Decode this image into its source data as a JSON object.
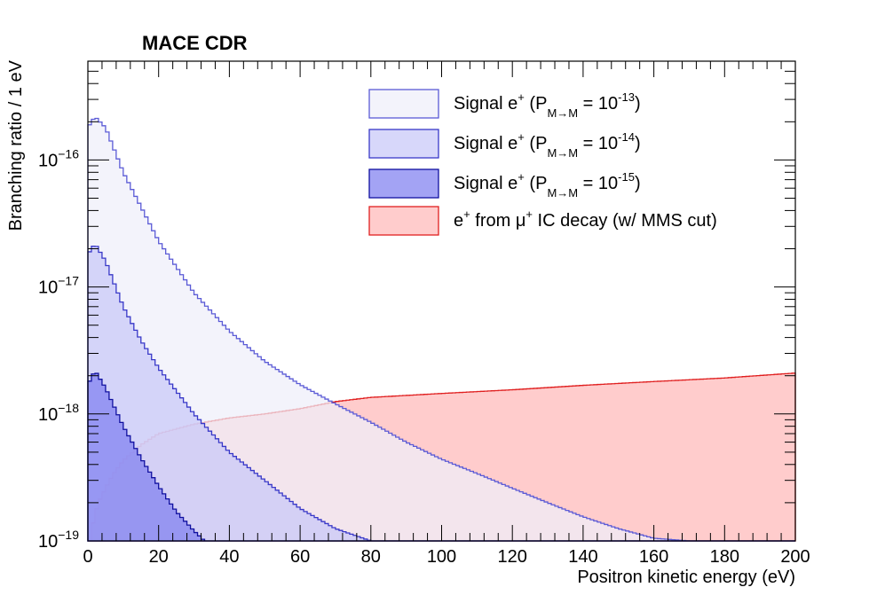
{
  "chart_data": {
    "type": "histogram",
    "title": "MACE CDR",
    "xlabel": "Positron kinetic energy (eV)",
    "ylabel": "Branching ratio / 1 eV",
    "xlim": [
      0,
      200
    ],
    "ylim": [
      1e-19,
      6e-16
    ],
    "yscale": "log",
    "bin_width_eV": 1,
    "x_ticks": [
      "0",
      "20",
      "40",
      "60",
      "80",
      "100",
      "120",
      "140",
      "160",
      "180",
      "200"
    ],
    "y_tick_mantissa": "10",
    "y_tick_exponents": [
      "−16",
      "−17",
      "−18",
      "−19"
    ],
    "legend_position": "top-right",
    "series": [
      {
        "name": "signal_1e-13",
        "legend_prefix": "Signal e",
        "legend_sup": "+",
        "legend_mid": " (P",
        "legend_sub": "M→M",
        "legend_eq": " = 10",
        "legend_exp": "-13",
        "legend_end": ")",
        "peak_x": 2,
        "peak_y": 2.2e-16,
        "points": [
          [
            0,
            1.8e-16
          ],
          [
            2,
            2.2e-16
          ],
          [
            5,
            1.8e-16
          ],
          [
            10,
            8e-17
          ],
          [
            20,
            2.3e-17
          ],
          [
            30,
            9e-18
          ],
          [
            40,
            4.5e-18
          ],
          [
            50,
            2.6e-18
          ],
          [
            60,
            1.7e-18
          ],
          [
            70,
            1.2e-18
          ],
          [
            80,
            8.6e-19
          ],
          [
            90,
            6e-19
          ],
          [
            100,
            4.4e-19
          ],
          [
            110,
            3.4e-19
          ],
          [
            120,
            2.6e-19
          ],
          [
            130,
            2e-19
          ],
          [
            140,
            1.55e-19
          ],
          [
            150,
            1.25e-19
          ],
          [
            160,
            1.05e-19
          ],
          [
            170,
            1e-19
          ]
        ],
        "fill": "#eeeefa",
        "line": "#5b5bd6"
      },
      {
        "name": "signal_1e-14",
        "legend_prefix": "Signal e",
        "legend_sup": "+",
        "legend_mid": " (P",
        "legend_sub": "M→M",
        "legend_eq": " = 10",
        "legend_exp": "-14",
        "legend_end": ")",
        "peak_x": 2,
        "peak_y": 2.2e-17,
        "points": [
          [
            0,
            1.8e-17
          ],
          [
            2,
            2.2e-17
          ],
          [
            5,
            1.6e-17
          ],
          [
            10,
            7e-18
          ],
          [
            15,
            3.8e-18
          ],
          [
            20,
            2.3e-18
          ],
          [
            30,
            1e-18
          ],
          [
            40,
            5e-19
          ],
          [
            50,
            3e-19
          ],
          [
            60,
            1.8e-19
          ],
          [
            70,
            1.25e-19
          ],
          [
            80,
            1e-19
          ]
        ],
        "fill": "#c8c8f8",
        "line": "#3838c8"
      },
      {
        "name": "signal_1e-15",
        "legend_prefix": "Signal e",
        "legend_sup": "+",
        "legend_mid": " (P",
        "legend_sub": "M→M",
        "legend_eq": " = 10",
        "legend_exp": "-15",
        "legend_end": ")",
        "peak_x": 2,
        "peak_y": 2.2e-18,
        "points": [
          [
            0,
            1.7e-18
          ],
          [
            2,
            2.2e-18
          ],
          [
            5,
            1.6e-18
          ],
          [
            10,
            8e-19
          ],
          [
            15,
            4.5e-19
          ],
          [
            20,
            2.7e-19
          ],
          [
            25,
            1.7e-19
          ],
          [
            30,
            1.2e-19
          ],
          [
            33,
            1e-19
          ]
        ],
        "fill": "#8080f0",
        "line": "#1010a0"
      },
      {
        "name": "ic_decay",
        "legend_prefix": "e",
        "legend_sup": "+",
        "legend_mid": " from   μ",
        "legend_sub": "",
        "legend_eq": "",
        "legend_exp": "+",
        "legend_end": " IC decay (w/ MMS cut)",
        "points": [
          [
            0,
            1e-19
          ],
          [
            0.9,
            1e-19
          ],
          [
            1,
            1.2e-19
          ],
          [
            2,
            1.6e-19
          ],
          [
            3,
            2e-19
          ],
          [
            5,
            2.6e-19
          ],
          [
            7,
            3.3e-19
          ],
          [
            10,
            4.3e-19
          ],
          [
            15,
            5.7e-19
          ],
          [
            20,
            7e-19
          ],
          [
            30,
            8.3e-19
          ],
          [
            40,
            9.3e-19
          ],
          [
            50,
            1e-18
          ],
          [
            60,
            1.1e-18
          ],
          [
            70,
            1.25e-18
          ],
          [
            80,
            1.35e-18
          ],
          [
            100,
            1.45e-18
          ],
          [
            120,
            1.55e-18
          ],
          [
            140,
            1.68e-18
          ],
          [
            160,
            1.8e-18
          ],
          [
            180,
            1.92e-18
          ],
          [
            200,
            2.1e-18
          ]
        ],
        "fill": "#ffcccc",
        "line": "#e02020"
      }
    ]
  }
}
